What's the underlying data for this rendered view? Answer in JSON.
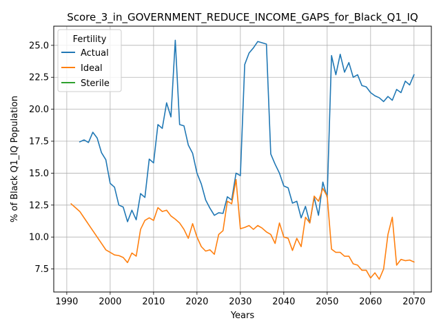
{
  "chart_data": {
    "type": "line",
    "title": "Score_3_in_GOVERNMENT_REDUCE_INCOME_GAPS_for_Black_Q1_IQ",
    "xlabel": "Years",
    "ylabel": "% of Black Q1_IQ Population",
    "xlim": [
      1987,
      2074
    ],
    "ylim": [
      5.7,
      26.5
    ],
    "xticks": [
      1990,
      2000,
      2010,
      2020,
      2030,
      2040,
      2050,
      2060,
      2070
    ],
    "yticks": [
      7.5,
      10.0,
      12.5,
      15.0,
      17.5,
      20.0,
      22.5,
      25.0
    ],
    "ytick_labels": [
      "7.5",
      "10.0",
      "12.5",
      "15.0",
      "17.5",
      "20.0",
      "22.5",
      "25.0"
    ],
    "grid": true,
    "legend": {
      "title": "Fertility",
      "placement": "top-left"
    },
    "series": [
      {
        "name": "Actual",
        "color": "#1f77b4",
        "x": [
          1993,
          1994,
          1995,
          1996,
          1997,
          1998,
          1999,
          2000,
          2001,
          2002,
          2003,
          2004,
          2005,
          2006,
          2007,
          2008,
          2009,
          2010,
          2011,
          2012,
          2013,
          2014,
          2015,
          2016,
          2017,
          2018,
          2019,
          2020,
          2021,
          2022,
          2023,
          2024,
          2025,
          2026,
          2027,
          2028,
          2029,
          2030,
          2031,
          2032,
          2033,
          2034,
          2035,
          2036,
          2037,
          2038,
          2039,
          2040,
          2041,
          2042,
          2043,
          2044,
          2045,
          2046,
          2047,
          2048,
          2049,
          2050,
          2051,
          2052,
          2053,
          2054,
          2055,
          2056,
          2057,
          2058,
          2059,
          2060,
          2061,
          2062,
          2063,
          2064,
          2065,
          2066,
          2067,
          2068,
          2069,
          2070
        ],
        "values": [
          17.45,
          17.6,
          17.4,
          18.2,
          17.75,
          16.6,
          16.05,
          14.2,
          13.9,
          12.5,
          12.35,
          11.2,
          12.1,
          11.35,
          13.4,
          13.1,
          16.1,
          15.8,
          18.8,
          18.5,
          20.5,
          19.4,
          25.4,
          18.8,
          18.7,
          17.2,
          16.55,
          15.0,
          14.15,
          12.9,
          12.25,
          11.7,
          11.9,
          11.85,
          13.15,
          12.9,
          15.0,
          14.8,
          23.5,
          24.4,
          24.8,
          25.3,
          25.2,
          25.1,
          16.5,
          15.7,
          15.0,
          14.0,
          13.85,
          12.65,
          12.8,
          11.5,
          12.4,
          11.1,
          13.1,
          11.7,
          14.3,
          13.1,
          24.2,
          22.7,
          24.3,
          22.9,
          23.65,
          22.5,
          22.7,
          21.85,
          21.75,
          21.3,
          21.05,
          20.9,
          20.6,
          21.0,
          20.7,
          21.55,
          21.3,
          22.2,
          21.9,
          22.7
        ]
      },
      {
        "name": "Ideal",
        "color": "#ff7f0e",
        "x": [
          1991,
          1992,
          1993,
          1994,
          1995,
          1996,
          1997,
          1998,
          1999,
          2000,
          2001,
          2002,
          2003,
          2004,
          2005,
          2006,
          2007,
          2008,
          2009,
          2010,
          2011,
          2012,
          2013,
          2014,
          2015,
          2016,
          2017,
          2018,
          2019,
          2020,
          2021,
          2022,
          2023,
          2024,
          2025,
          2026,
          2027,
          2028,
          2029,
          2030,
          2031,
          2032,
          2033,
          2034,
          2035,
          2036,
          2037,
          2038,
          2039,
          2040,
          2041,
          2042,
          2043,
          2044,
          2045,
          2046,
          2047,
          2048,
          2049,
          2050,
          2051,
          2052,
          2053,
          2054,
          2055,
          2056,
          2057,
          2058,
          2059,
          2060,
          2061,
          2062,
          2063,
          2064,
          2065,
          2066,
          2067,
          2068,
          2069,
          2070
        ],
        "values": [
          12.6,
          12.3,
          12.0,
          11.5,
          11.0,
          10.5,
          10.0,
          9.5,
          9.0,
          8.8,
          8.6,
          8.55,
          8.4,
          8.0,
          8.75,
          8.5,
          10.6,
          11.3,
          11.5,
          11.3,
          12.3,
          12.0,
          12.1,
          11.65,
          11.4,
          11.1,
          10.6,
          9.9,
          11.05,
          10.0,
          9.25,
          8.9,
          9.0,
          8.65,
          10.2,
          10.5,
          12.8,
          12.6,
          14.5,
          10.65,
          10.75,
          10.9,
          10.6,
          10.9,
          10.7,
          10.4,
          10.2,
          9.5,
          11.1,
          10.0,
          9.9,
          8.95,
          9.9,
          9.25,
          11.55,
          11.1,
          13.2,
          12.8,
          13.8,
          13.2,
          9.05,
          8.8,
          8.8,
          8.5,
          8.5,
          7.9,
          7.8,
          7.4,
          7.4,
          6.8,
          7.2,
          6.7,
          7.5,
          10.2,
          11.55,
          7.8,
          8.25,
          8.15,
          8.2,
          8.05
        ]
      },
      {
        "name": "Sterile",
        "color": "#2ca02c",
        "x": [],
        "values": []
      }
    ]
  }
}
